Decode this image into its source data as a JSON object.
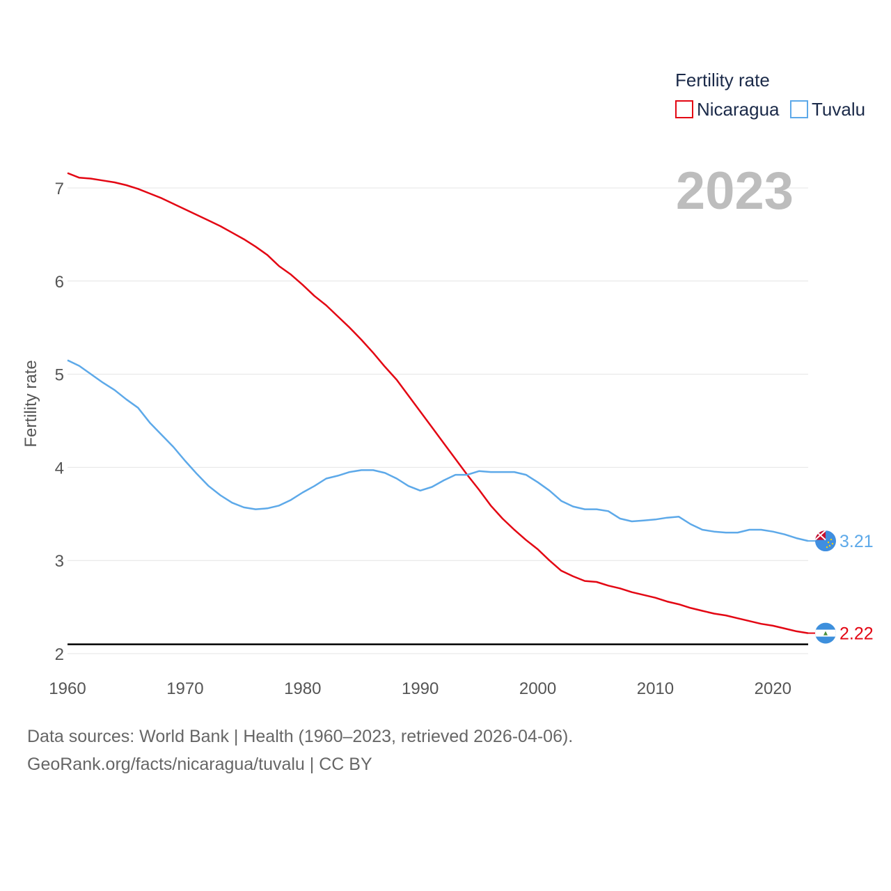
{
  "chart_data": {
    "type": "line",
    "title": "2023",
    "ylabel": "Fertility rate",
    "xlabel": "",
    "xlim": [
      1960,
      2023
    ],
    "ylim": [
      2,
      7.5
    ],
    "x_ticks": [
      1960,
      1970,
      1980,
      1990,
      2000,
      2010,
      2020
    ],
    "y_ticks": [
      2,
      3,
      4,
      5,
      6,
      7
    ],
    "grid": true,
    "legend": {
      "title": "Fertility rate",
      "position": "top-right",
      "entries": [
        "Nicaragua",
        "Tuvalu"
      ]
    },
    "reference_line": {
      "value": 2.1,
      "color": "#000000"
    },
    "series": [
      {
        "name": "Nicaragua",
        "color": "#e30613",
        "end_label": "2.22",
        "x": [
          1960,
          1961,
          1962,
          1963,
          1964,
          1965,
          1966,
          1967,
          1968,
          1969,
          1970,
          1971,
          1972,
          1973,
          1974,
          1975,
          1976,
          1977,
          1978,
          1979,
          1980,
          1981,
          1982,
          1983,
          1984,
          1985,
          1986,
          1987,
          1988,
          1989,
          1990,
          1991,
          1992,
          1993,
          1994,
          1995,
          1996,
          1997,
          1998,
          1999,
          2000,
          2001,
          2002,
          2003,
          2004,
          2005,
          2006,
          2007,
          2008,
          2009,
          2010,
          2011,
          2012,
          2013,
          2014,
          2015,
          2016,
          2017,
          2018,
          2019,
          2020,
          2021,
          2022,
          2023
        ],
        "values": [
          7.16,
          7.11,
          7.1,
          7.08,
          7.06,
          7.03,
          6.99,
          6.94,
          6.89,
          6.83,
          6.77,
          6.71,
          6.65,
          6.59,
          6.52,
          6.45,
          6.37,
          6.28,
          6.16,
          6.07,
          5.96,
          5.84,
          5.74,
          5.62,
          5.5,
          5.37,
          5.23,
          5.08,
          4.94,
          4.77,
          4.6,
          4.43,
          4.26,
          4.09,
          3.92,
          3.76,
          3.59,
          3.45,
          3.33,
          3.22,
          3.12,
          3.0,
          2.89,
          2.83,
          2.78,
          2.77,
          2.73,
          2.7,
          2.66,
          2.63,
          2.6,
          2.56,
          2.53,
          2.49,
          2.46,
          2.43,
          2.41,
          2.38,
          2.35,
          2.32,
          2.3,
          2.27,
          2.24,
          2.22
        ]
      },
      {
        "name": "Tuvalu",
        "color": "#5da9e9",
        "end_label": "3.21",
        "x": [
          1960,
          1961,
          1962,
          1963,
          1964,
          1965,
          1966,
          1967,
          1968,
          1969,
          1970,
          1971,
          1972,
          1973,
          1974,
          1975,
          1976,
          1977,
          1978,
          1979,
          1980,
          1981,
          1982,
          1983,
          1984,
          1985,
          1986,
          1987,
          1988,
          1989,
          1990,
          1991,
          1992,
          1993,
          1994,
          1995,
          1996,
          1997,
          1998,
          1999,
          2000,
          2001,
          2002,
          2003,
          2004,
          2005,
          2006,
          2007,
          2008,
          2009,
          2010,
          2011,
          2012,
          2013,
          2014,
          2015,
          2016,
          2017,
          2018,
          2019,
          2020,
          2021,
          2022,
          2023
        ],
        "values": [
          5.15,
          5.09,
          5.0,
          4.91,
          4.83,
          4.73,
          4.64,
          4.48,
          4.35,
          4.22,
          4.07,
          3.93,
          3.8,
          3.7,
          3.62,
          3.57,
          3.55,
          3.56,
          3.59,
          3.65,
          3.73,
          3.8,
          3.88,
          3.91,
          3.95,
          3.97,
          3.97,
          3.94,
          3.88,
          3.8,
          3.75,
          3.79,
          3.86,
          3.92,
          3.92,
          3.96,
          3.95,
          3.95,
          3.95,
          3.92,
          3.84,
          3.75,
          3.64,
          3.58,
          3.55,
          3.55,
          3.53,
          3.45,
          3.42,
          3.43,
          3.44,
          3.46,
          3.47,
          3.39,
          3.33,
          3.31,
          3.3,
          3.3,
          3.33,
          3.33,
          3.31,
          3.28,
          3.24,
          3.21
        ]
      }
    ]
  },
  "footer": {
    "line1": "Data sources: World Bank | Health (1960–2023, retrieved 2026-04-06).",
    "line2": "GeoRank.org/facts/nicaragua/tuvalu | CC BY"
  }
}
